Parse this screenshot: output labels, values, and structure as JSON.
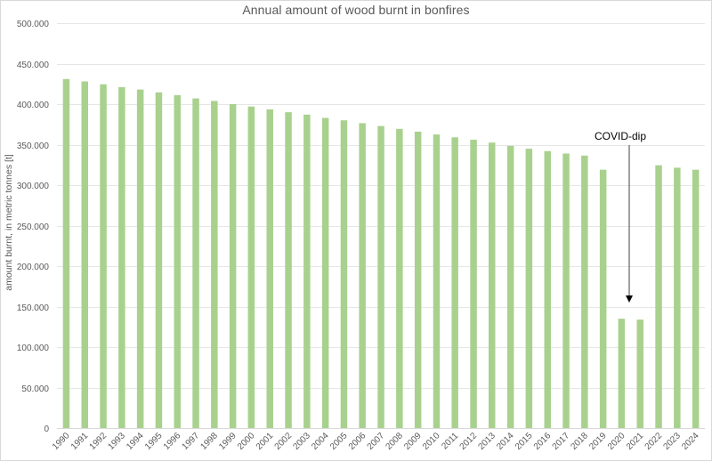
{
  "chart_data": {
    "type": "bar",
    "title": "Annual amount of wood burnt in bonfires",
    "xlabel": "",
    "ylabel": "amount burnt, in metric tonnes [t]",
    "ylim": [
      0,
      500000
    ],
    "yticks": [
      0,
      50000,
      100000,
      150000,
      200000,
      250000,
      300000,
      350000,
      400000,
      450000,
      500000
    ],
    "ytick_labels": [
      "0",
      "50.000",
      "100.000",
      "150.000",
      "200.000",
      "250.000",
      "300.000",
      "350.000",
      "400.000",
      "450.000",
      "500.000"
    ],
    "grid": true,
    "legend": null,
    "bar_color": "#A9D18E",
    "categories": [
      "1990",
      "1991",
      "1992",
      "1993",
      "1994",
      "1995",
      "1996",
      "1997",
      "1998",
      "1999",
      "2000",
      "2001",
      "2002",
      "2003",
      "2004",
      "2005",
      "2006",
      "2007",
      "2008",
      "2009",
      "2010",
      "2011",
      "2012",
      "2013",
      "2014",
      "2015",
      "2016",
      "2017",
      "2018",
      "2019",
      "2020",
      "2021",
      "2022",
      "2023",
      "2024"
    ],
    "values": [
      431000,
      428000,
      424500,
      421000,
      418000,
      414500,
      411000,
      407000,
      404000,
      400000,
      397000,
      393500,
      390000,
      387000,
      383000,
      380000,
      376500,
      373000,
      369500,
      366000,
      362500,
      359000,
      356000,
      352500,
      348500,
      345000,
      342000,
      339000,
      336500,
      319000,
      135000,
      134000,
      324500,
      321500,
      319000
    ],
    "annotations": [
      {
        "text": "COVID-dip",
        "points_to": "2020-2021",
        "type": "arrow"
      }
    ]
  },
  "colors": {
    "bar": "#A9D18E",
    "grid": "#e6e6e6",
    "axis_text": "#595959",
    "annotation_text": "#000000",
    "arrow": "#404040"
  }
}
